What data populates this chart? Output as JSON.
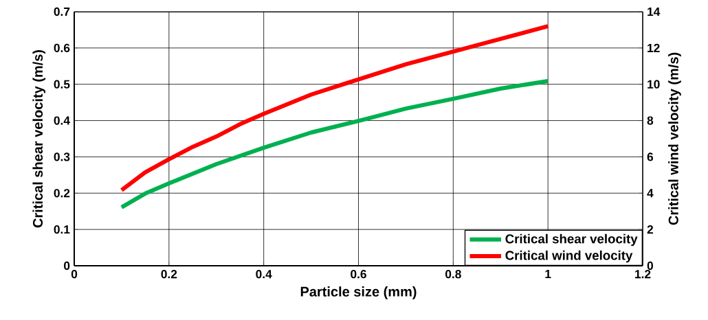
{
  "chart_data": {
    "type": "line",
    "xlabel": "Particle size (mm)",
    "ylabel": "Critical shear velocity (m/s)",
    "y2label": "Critical wind velocity (m/s)",
    "xlim": [
      0,
      1.2
    ],
    "xticks": [
      0,
      0.2,
      0.4,
      0.6,
      0.8,
      1,
      1.2
    ],
    "ylim": [
      0,
      0.7
    ],
    "yticks": [
      0,
      0.1,
      0.2,
      0.3,
      0.4,
      0.5,
      0.6,
      0.7
    ],
    "y2lim": [
      0,
      14
    ],
    "y2ticks": [
      0,
      2,
      4,
      6,
      8,
      10,
      12,
      14
    ],
    "grid": true,
    "legend": "bottom right",
    "marker": "none",
    "line_style": "solid",
    "series": [
      {
        "name": "Critical shear velocity",
        "color": "#00b050",
        "x": [
          0.1,
          0.15,
          0.2,
          0.3,
          0.4,
          0.5,
          0.6,
          0.7,
          0.8,
          0.9,
          1.0
        ],
        "values": [
          0.161,
          0.199,
          0.227,
          0.28,
          0.325,
          0.367,
          0.399,
          0.433,
          0.46,
          0.488,
          0.509
        ]
      },
      {
        "name": "Critical wind velocity",
        "color": "#ff0000",
        "axis": "y2",
        "x": [
          0.1,
          0.15,
          0.2,
          0.25,
          0.3,
          0.35,
          0.4,
          0.45,
          0.5,
          0.6,
          0.7,
          0.8,
          0.9,
          1.0
        ],
        "values": [
          4.17,
          5.15,
          5.87,
          6.55,
          7.12,
          7.8,
          8.37,
          8.9,
          9.43,
          10.27,
          11.1,
          11.8,
          12.5,
          13.2
        ]
      }
    ]
  }
}
